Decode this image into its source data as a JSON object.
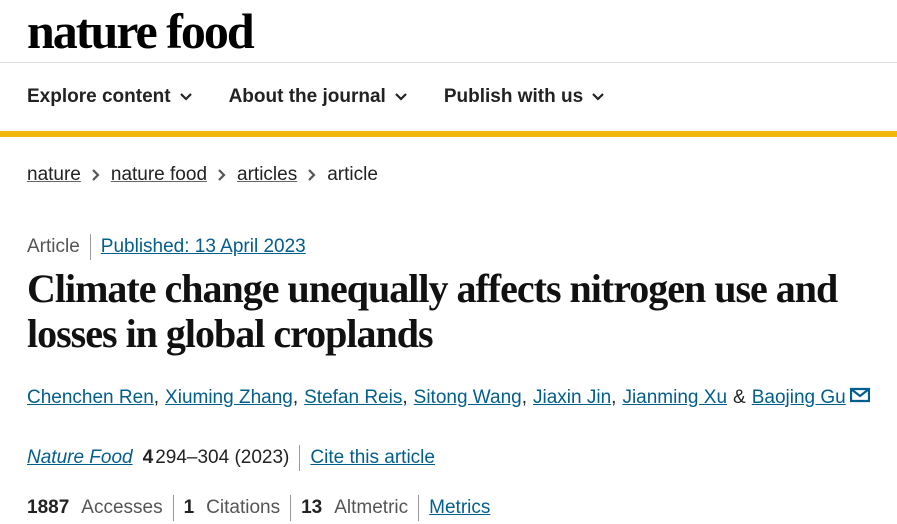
{
  "header": {
    "logo": "nature food"
  },
  "nav": [
    "Explore content",
    "About the journal",
    "Publish with us"
  ],
  "breadcrumbs": [
    "nature",
    "nature food",
    "articles",
    "article"
  ],
  "article": {
    "type": "Article",
    "published": "Published: 13 April 2023",
    "title": "Climate change unequally affects nitrogen use and losses in global croplands",
    "authors": [
      "Chenchen Ren",
      "Xiuming Zhang",
      "Stefan Reis",
      "Sitong Wang",
      "Jiaxin Jin",
      "Jianming Xu",
      "Baojing Gu"
    ],
    "author_separator": ",",
    "last_separator": "&",
    "journal": "Nature Food",
    "volume": "4",
    "pages": "294–304 (2023)",
    "cite": "Cite this article",
    "metrics": [
      {
        "value": 1887,
        "label": "Accesses"
      },
      {
        "value": 1,
        "label": "Citations"
      },
      {
        "value": 13,
        "label": "Altmetric"
      }
    ],
    "metrics_link": "Metrics"
  }
}
